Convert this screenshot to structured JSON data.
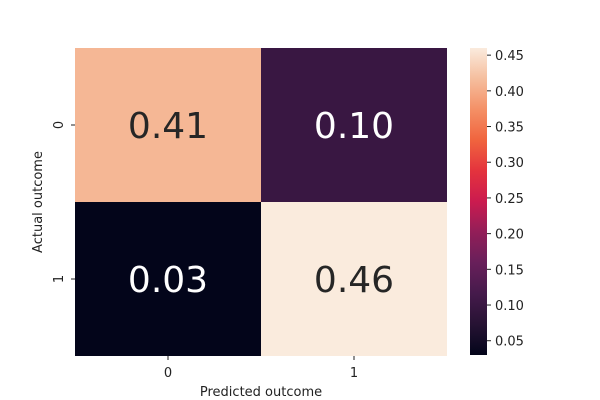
{
  "chart_data": {
    "type": "heatmap",
    "title": "",
    "xlabel": "Predicted outcome",
    "ylabel": "Actual outcome",
    "x_categories": [
      "0",
      "1"
    ],
    "y_categories": [
      "0",
      "1"
    ],
    "values": [
      [
        0.41,
        0.1
      ],
      [
        0.03,
        0.46
      ]
    ],
    "cell_labels": [
      [
        "0.41",
        "0.10"
      ],
      [
        "0.03",
        "0.46"
      ]
    ],
    "colorbar": {
      "min": 0.03,
      "max": 0.46,
      "ticks": [
        0.05,
        0.1,
        0.15,
        0.2,
        0.25,
        0.3,
        0.35,
        0.4,
        0.45
      ],
      "tick_labels": [
        "0.05",
        "0.10",
        "0.15",
        "0.20",
        "0.25",
        "0.30",
        "0.35",
        "0.40",
        "0.45"
      ],
      "colormap": "rocket"
    },
    "grid": false,
    "legend": "colorbar-right"
  }
}
